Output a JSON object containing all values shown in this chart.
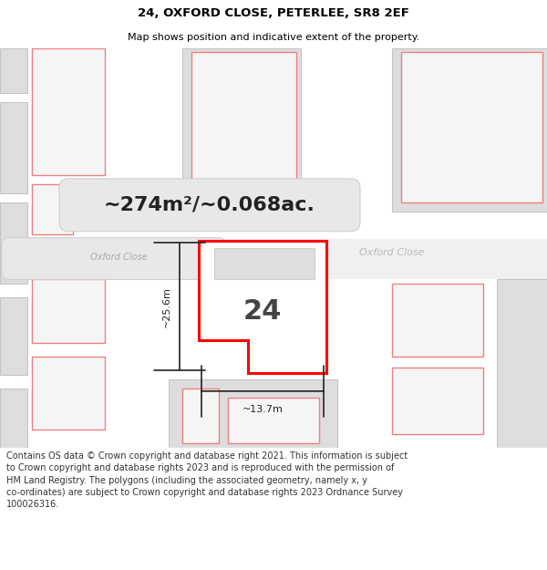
{
  "title": "24, OXFORD CLOSE, PETERLEE, SR8 2EF",
  "subtitle": "Map shows position and indicative extent of the property.",
  "footer": "Contains OS data © Crown copyright and database right 2021. This information is subject to Crown copyright and database rights 2023 and is reproduced with the permission of HM Land Registry. The polygons (including the associated geometry, namely x, y co-ordinates) are subject to Crown copyright and database rights 2023 Ordnance Survey 100026316.",
  "area_label": "~274m²/~0.068ac.",
  "number_label": "24",
  "dim_width": "~13.7m",
  "dim_height": "~25.6m",
  "road_name_1": "Oxford Close",
  "road_name_2": "Oxford Close",
  "map_bg": "#eeeeee",
  "building_fill": "#dddddd",
  "building_stroke": "#bbbbbb",
  "highlight_fill": "#ffffff",
  "highlight_stroke": "#ff0000",
  "neighbor_stroke": "#f08080",
  "neighbor_fill": "#f5f5f5"
}
